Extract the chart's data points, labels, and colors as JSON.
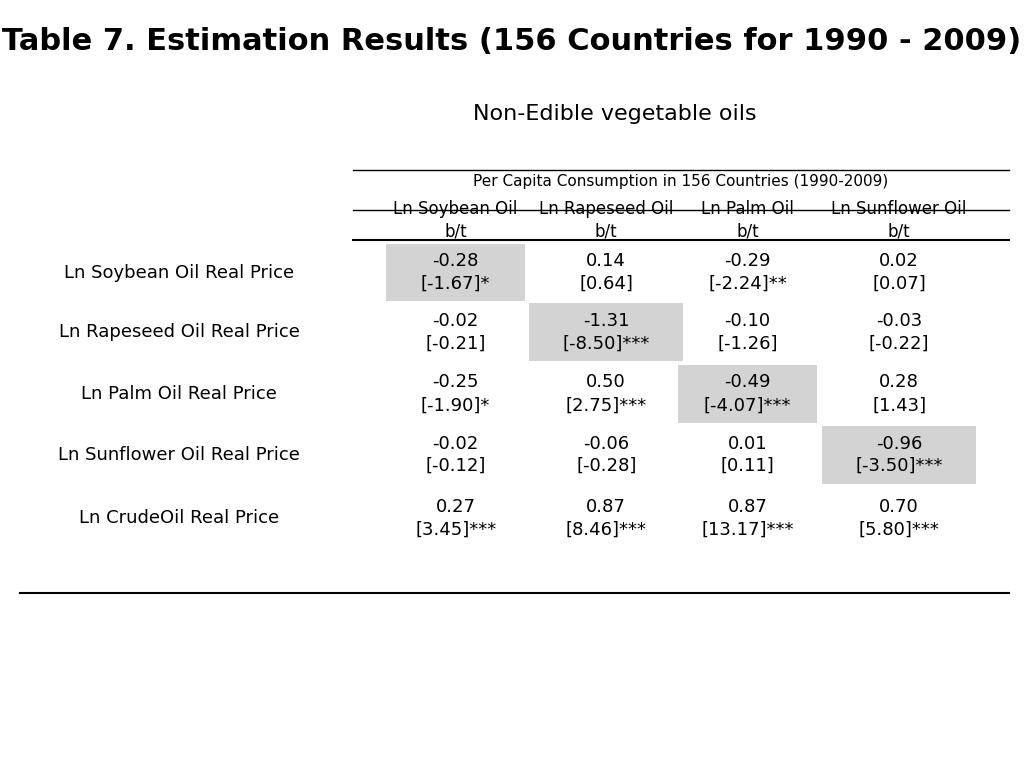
{
  "title": "Table 7. Estimation Results (156 Countries for 1990 - 2009)",
  "subtitle": "Non-Edible vegetable oils",
  "sub_header": "Per Capita Consumption in 156 Countries (1990-2009)",
  "col_headers_line1": [
    "Ln Soybean Oil",
    "Ln Rapeseed Oil",
    "Ln Palm Oil",
    "Ln Sunflower Oil"
  ],
  "col_headers_line2": [
    "b/t",
    "b/t",
    "b/t",
    "b/t"
  ],
  "row_labels": [
    "Ln Soybean Oil Real Price",
    "Ln Rapeseed Oil Real Price",
    "Ln Palm Oil Real Price",
    "Ln Sunflower Oil Real Price",
    "Ln CrudeOil Real Price"
  ],
  "cell_coefs": [
    [
      "-0.28",
      "0.14",
      "-0.29",
      "0.02"
    ],
    [
      "-0.02",
      "-1.31",
      "-0.10",
      "-0.03"
    ],
    [
      "-0.25",
      "0.50",
      "-0.49",
      "0.28"
    ],
    [
      "-0.02",
      "-0.06",
      "0.01",
      "-0.96"
    ],
    [
      "0.27",
      "0.87",
      "0.87",
      "0.70"
    ]
  ],
  "cell_tstat": [
    [
      "[-1.67]*",
      "[0.64]",
      "[-2.24]**",
      "[0.07]"
    ],
    [
      "[-0.21]",
      "[-8.50]***",
      "[-1.26]",
      "[-0.22]"
    ],
    [
      "[-1.90]*",
      "[2.75]***",
      "[-4.07]***",
      "[1.43]"
    ],
    [
      "[-0.12]",
      "[-0.28]",
      "[0.11]",
      "[-3.50]***"
    ],
    [
      "[3.45]***",
      "[8.46]***",
      "[13.17]***",
      "[5.80]***"
    ]
  ],
  "shade_color": "#d3d3d3",
  "background_color": "#ffffff",
  "title_fontsize": 22,
  "subtitle_fontsize": 16,
  "subheader_fontsize": 11,
  "header_fontsize": 12,
  "cell_fontsize": 13,
  "row_label_fontsize": 13
}
